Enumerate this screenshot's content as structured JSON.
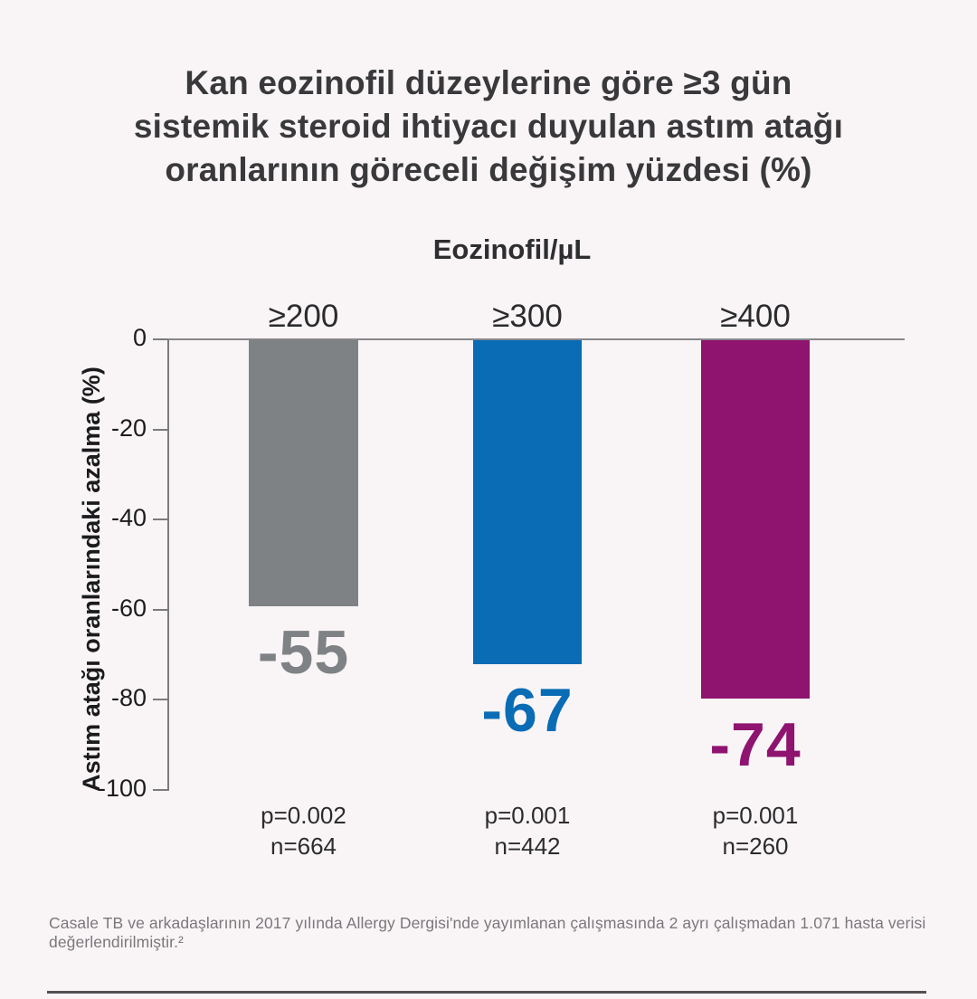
{
  "title": {
    "line1": "Kan eozinofil düzeylerine göre ≥3 gün",
    "line2": "sistemik steroid ihtiyacı duyulan astım atağı",
    "line3": "oranlarının göreceli değişim yüzdesi (%)"
  },
  "chart_data": {
    "type": "bar",
    "title": "Kan eozinofil düzeylerine göre ≥3 gün sistemik steroid ihtiyacı duyulan astım atağı oranlarının göreceli değişim yüzdesi (%)",
    "group_label": "Eozinofil/µL",
    "categories": [
      "≥200",
      "≥300",
      "≥400"
    ],
    "values": [
      -55,
      -67,
      -74
    ],
    "value_labels": [
      "-55",
      "-67",
      "-74"
    ],
    "bar_colors": [
      "#7e8285",
      "#096cb5",
      "#8e1470"
    ],
    "p_values": [
      "p=0.002",
      "p=0.001",
      "p=0.001"
    ],
    "n_values": [
      "n=664",
      "n=442",
      "n=260"
    ],
    "ylabel": "Astım atağı oranlarındaki azalma (%)",
    "ylim": [
      -100,
      0
    ],
    "yticks": [
      "0",
      "-20",
      "-40",
      "-60",
      "-80",
      "-100"
    ],
    "grid": false,
    "legend": false
  },
  "colors": {
    "background": "#f9f5f7",
    "title_text": "#39393b",
    "axis_line": "#7b7b7e",
    "tick_text": "#1c1c1e",
    "gray_bar": "#7e8285",
    "blue_bar": "#096cb5",
    "purple_bar": "#8e1470",
    "pn_text": "#2c2c2e",
    "footnote_text": "#7b777b",
    "bottom_rule": "#525055"
  },
  "footnote": "Casale TB ve arkadaşlarının 2017 yılında Allergy Dergisi'nde yayımlanan çalışmasında 2 ayrı çalışmadan 1.071 hasta verisi değerlendirilmiştir.²"
}
